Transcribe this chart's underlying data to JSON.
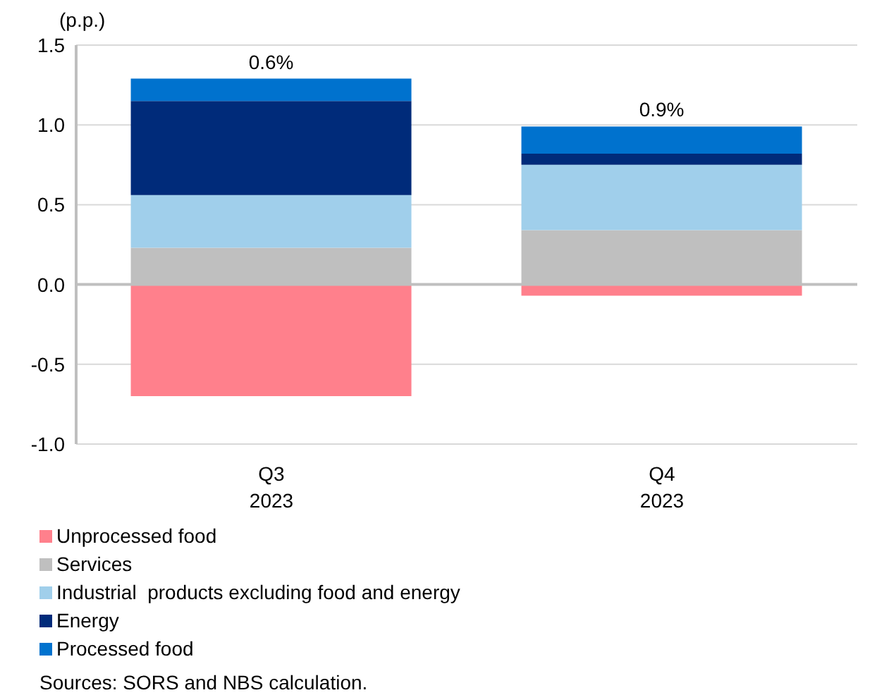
{
  "chart_data": {
    "type": "bar",
    "stacked": true,
    "ylabel": "(p.p.)",
    "categories": [
      "Q3 2023",
      "Q4 2023"
    ],
    "series": [
      {
        "name": "Unprocessed food",
        "color": "#ff808c",
        "values": [
          -0.7,
          -0.07
        ]
      },
      {
        "name": "Services",
        "color": "#bfbfbf",
        "values": [
          0.23,
          0.34
        ]
      },
      {
        "name": "Industrial  products excluding food and energy",
        "color": "#a0cfeb",
        "values": [
          0.33,
          0.41
        ]
      },
      {
        "name": "Energy",
        "color": "#002b7a",
        "values": [
          0.59,
          0.07
        ]
      },
      {
        "name": "Processed food",
        "color": "#0072ce",
        "values": [
          0.14,
          0.17
        ]
      }
    ],
    "totals": [
      "0.6%",
      "0.9%"
    ],
    "ylim": [
      -1.0,
      1.5
    ],
    "yticks": [
      {
        "value": -1,
        "label": "-1.0"
      },
      {
        "value": -0.5,
        "label": "-0.5"
      },
      {
        "value": 0,
        "label": "0.0"
      },
      {
        "value": 0.5,
        "label": "0.5"
      },
      {
        "value": 1,
        "label": "1.0"
      },
      {
        "value": 1.5,
        "label": "1.5"
      }
    ],
    "grid": "y",
    "legend": "bottom",
    "annotations": [
      "Sources: SORS and NBS calculation."
    ]
  }
}
